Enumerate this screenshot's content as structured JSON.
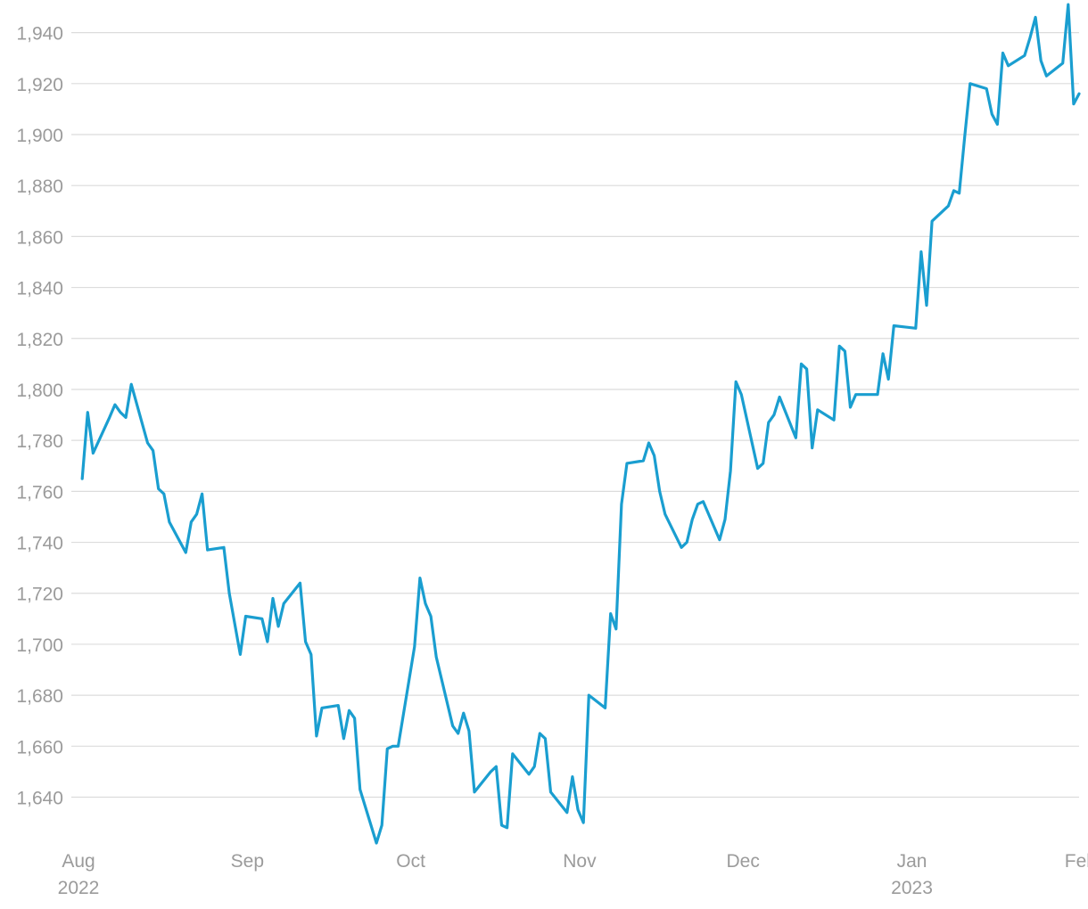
{
  "chart_data": {
    "type": "line",
    "title": "",
    "xlabel": "",
    "ylabel": "",
    "grid": true,
    "legend": "none",
    "line_color": "#1a9ed0",
    "ylim": [
      1622,
      1950
    ],
    "xlim": [
      "2022-08-01",
      "2023-02-02"
    ],
    "y_ticks": [
      1640,
      1660,
      1680,
      1700,
      1720,
      1740,
      1760,
      1780,
      1800,
      1820,
      1840,
      1860,
      1880,
      1900,
      1920,
      1940
    ],
    "y_tick_labels": [
      "1,640",
      "1,660",
      "1,680",
      "1,700",
      "1,720",
      "1,740",
      "1,760",
      "1,780",
      "1,800",
      "1,820",
      "1,840",
      "1,860",
      "1,880",
      "1,900",
      "1,920",
      "1,940"
    ],
    "x_ticks": [
      {
        "date": "2022-08-01",
        "month": "Aug",
        "year": "2022"
      },
      {
        "date": "2022-09-01",
        "month": "Sep",
        "year": ""
      },
      {
        "date": "2022-10-01",
        "month": "Oct",
        "year": ""
      },
      {
        "date": "2022-11-01",
        "month": "Nov",
        "year": ""
      },
      {
        "date": "2022-12-01",
        "month": "Dec",
        "year": ""
      },
      {
        "date": "2023-01-01",
        "month": "Jan",
        "year": "2023"
      },
      {
        "date": "2023-02-01",
        "month": "Feb",
        "year": ""
      }
    ],
    "series": [
      {
        "x": [
          "2022-08-03",
          "2022-08-04",
          "2022-08-05",
          "2022-08-08",
          "2022-08-09",
          "2022-08-10",
          "2022-08-11",
          "2022-08-12",
          "2022-08-15",
          "2022-08-16",
          "2022-08-17",
          "2022-08-18",
          "2022-08-19",
          "2022-08-22",
          "2022-08-23",
          "2022-08-24",
          "2022-08-25",
          "2022-08-26",
          "2022-08-29",
          "2022-08-30",
          "2022-09-01",
          "2022-09-02",
          "2022-09-05",
          "2022-09-06",
          "2022-09-07",
          "2022-09-08",
          "2022-09-09",
          "2022-09-12",
          "2022-09-13",
          "2022-09-14",
          "2022-09-15",
          "2022-09-16",
          "2022-09-19",
          "2022-09-20",
          "2022-09-21",
          "2022-09-22",
          "2022-09-23",
          "2022-09-26",
          "2022-09-27",
          "2022-09-28",
          "2022-09-29",
          "2022-09-30",
          "2022-10-03",
          "2022-10-04",
          "2022-10-05",
          "2022-10-06",
          "2022-10-07",
          "2022-10-10",
          "2022-10-11",
          "2022-10-12",
          "2022-10-13",
          "2022-10-14",
          "2022-10-17",
          "2022-10-18",
          "2022-10-19",
          "2022-10-20",
          "2022-10-21",
          "2022-10-24",
          "2022-10-25",
          "2022-10-26",
          "2022-10-27",
          "2022-10-28",
          "2022-10-31",
          "2022-11-01",
          "2022-11-02",
          "2022-11-03",
          "2022-11-04",
          "2022-11-07",
          "2022-11-08",
          "2022-11-09",
          "2022-11-10",
          "2022-11-11",
          "2022-11-14",
          "2022-11-15",
          "2022-11-16",
          "2022-11-17",
          "2022-11-18",
          "2022-11-21",
          "2022-11-22",
          "2022-11-23",
          "2022-11-24",
          "2022-11-25",
          "2022-11-28",
          "2022-11-29",
          "2022-11-30",
          "2022-12-01",
          "2022-12-02",
          "2022-12-05",
          "2022-12-06",
          "2022-12-07",
          "2022-12-08",
          "2022-12-09",
          "2022-12-12",
          "2022-12-13",
          "2022-12-14",
          "2022-12-15",
          "2022-12-16",
          "2022-12-19",
          "2022-12-20",
          "2022-12-21",
          "2022-12-22",
          "2022-12-23",
          "2022-12-27",
          "2022-12-28",
          "2022-12-29",
          "2022-12-30",
          "2023-01-03",
          "2023-01-04",
          "2023-01-05",
          "2023-01-06",
          "2023-01-09",
          "2023-01-10",
          "2023-01-11",
          "2023-01-12",
          "2023-01-13",
          "2023-01-16",
          "2023-01-17",
          "2023-01-18",
          "2023-01-19",
          "2023-01-20",
          "2023-01-23",
          "2023-01-24",
          "2023-01-25",
          "2023-01-26",
          "2023-01-27",
          "2023-01-30",
          "2023-01-31",
          "2023-02-01",
          "2023-02-02"
        ],
        "values": [
          1765,
          1791,
          1775,
          1789,
          1794,
          1791,
          1789,
          1802,
          1779,
          1776,
          1761,
          1759,
          1748,
          1736,
          1748,
          1751,
          1759,
          1737,
          1738,
          1720,
          1696,
          1711,
          1710,
          1701,
          1718,
          1707,
          1716,
          1724,
          1701,
          1696,
          1664,
          1675,
          1676,
          1663,
          1674,
          1671,
          1643,
          1622,
          1629,
          1659,
          1660,
          1660,
          1699,
          1726,
          1716,
          1711,
          1695,
          1668,
          1665,
          1673,
          1666,
          1642,
          1650,
          1652,
          1629,
          1628,
          1657,
          1649,
          1652,
          1665,
          1663,
          1642,
          1634,
          1648,
          1635,
          1630,
          1680,
          1675,
          1712,
          1706,
          1755,
          1771,
          1772,
          1779,
          1774,
          1760,
          1751,
          1738,
          1740,
          1749,
          1755,
          1756,
          1741,
          1749,
          1768,
          1803,
          1798,
          1769,
          1771,
          1787,
          1790,
          1797,
          1781,
          1810,
          1808,
          1777,
          1792,
          1788,
          1817,
          1815,
          1793,
          1798,
          1798,
          1814,
          1804,
          1825,
          1824,
          1854,
          1833,
          1866,
          1872,
          1878,
          1877,
          1899,
          1920,
          1918,
          1908,
          1904,
          1932,
          1927,
          1931,
          1938,
          1946,
          1929,
          1923,
          1928,
          1951,
          1912,
          1916
        ]
      }
    ]
  }
}
